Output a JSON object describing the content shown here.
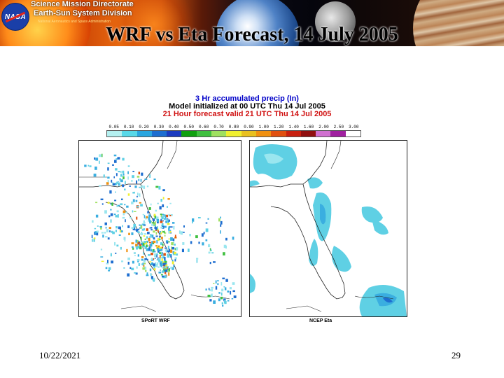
{
  "header": {
    "directorate": "Science Mission Directorate",
    "division": "Earth-Sun System Division",
    "agency": "National Aeronautics and Space Administration",
    "logo_text": "NASA"
  },
  "slide": {
    "title": "WRF vs Eta Forecast, 14 July 2005"
  },
  "figure": {
    "title_line1": "3 Hr accumulated precip (In)",
    "title_line2": "Model initialized at 00 UTC Thu 14 Jul 2005",
    "title_line3": "21 Hour forecast valid 21 UTC Thu 14 Jul 2005",
    "colorbar_ticks": [
      "0.05",
      "0.10",
      "0.20",
      "0.30",
      "0.40",
      "0.50",
      "0.60",
      "0.70",
      "0.80",
      "0.90",
      "1.00",
      "1.20",
      "1.40",
      "1.60",
      "2.00",
      "2.50",
      "3.00"
    ],
    "colorbar_colors": [
      "#b4f0f0",
      "#58d8e8",
      "#2aa6e0",
      "#1e6ed0",
      "#1c3cc0",
      "#10a010",
      "#40c040",
      "#a0e060",
      "#f0f030",
      "#e8c020",
      "#f09010",
      "#e05010",
      "#c82010",
      "#901010",
      "#d070d0",
      "#a020a0",
      "#ffffff"
    ],
    "left_panel_label": "SPoRT WRF",
    "right_panel_label": "NCEP Eta"
  },
  "footer": {
    "date": "10/22/2021",
    "page": "29"
  }
}
